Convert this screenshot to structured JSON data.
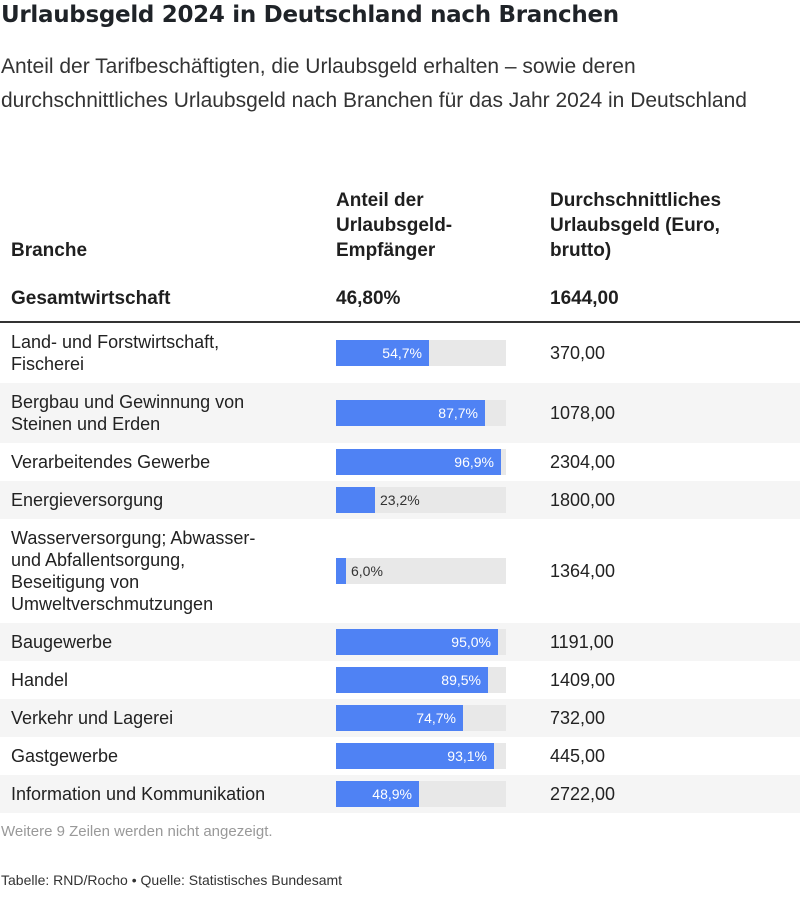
{
  "title": "Urlaubsgeld 2024 in Deutschland nach Branchen",
  "subtitle": "Anteil der Tarifbeschäftigten, die Urlaubsgeld erhalten – sowie deren durchschnittliches Urlaubsgeld nach Branchen für das Jahr 2024 in Deutschland",
  "columns": {
    "branche": "Branche",
    "anteil_1": "Anteil der",
    "anteil_2": "Urlaubsgeld-",
    "anteil_3": "Empfänger",
    "geld_1": "Durchschnittliches",
    "geld_2": "Urlaubsgeld (Euro,",
    "geld_3": "brutto)"
  },
  "total": {
    "name": "Gesamtwirtschaft",
    "anteil": "46,80%",
    "geld": "1644,00"
  },
  "bar_color": "#4f82f4",
  "track_color": "#e8e8e8",
  "chart_data": {
    "type": "table",
    "columns": [
      "Branche",
      "Anteil der Urlaubsgeld-Empfänger",
      "Durchschnittliches Urlaubsgeld (Euro, brutto)"
    ],
    "bar_max": 100,
    "rows": [
      {
        "lines": [
          "Land- und Forstwirtschaft,",
          "Fischerei"
        ],
        "anteil": 54.7,
        "anteil_label": "54,7%",
        "geld": "370,00"
      },
      {
        "lines": [
          "Bergbau und Gewinnung von",
          "Steinen und Erden"
        ],
        "anteil": 87.7,
        "anteil_label": "87,7%",
        "geld": "1078,00"
      },
      {
        "lines": [
          "Verarbeitendes Gewerbe"
        ],
        "anteil": 96.9,
        "anteil_label": "96,9%",
        "geld": "2304,00"
      },
      {
        "lines": [
          "Energieversorgung"
        ],
        "anteil": 23.2,
        "anteil_label": "23,2%",
        "geld": "1800,00"
      },
      {
        "lines": [
          "Wasserversorgung; Abwasser-",
          "und Abfallentsorgung,",
          "Beseitigung von",
          "Umweltverschmutzungen"
        ],
        "anteil": 6.0,
        "anteil_label": "6,0%",
        "geld": "1364,00"
      },
      {
        "lines": [
          "Baugewerbe"
        ],
        "anteil": 95.0,
        "anteil_label": "95,0%",
        "geld": "1191,00"
      },
      {
        "lines": [
          "Handel"
        ],
        "anteil": 89.5,
        "anteil_label": "89,5%",
        "geld": "1409,00"
      },
      {
        "lines": [
          "Verkehr und Lagerei"
        ],
        "anteil": 74.7,
        "anteil_label": "74,7%",
        "geld": "732,00"
      },
      {
        "lines": [
          "Gastgewerbe"
        ],
        "anteil": 93.1,
        "anteil_label": "93,1%",
        "geld": "445,00"
      },
      {
        "lines": [
          "Information und Kommunikation"
        ],
        "anteil": 48.9,
        "anteil_label": "48,9%",
        "geld": "2722,00"
      }
    ]
  },
  "note": "Weitere 9 Zeilen werden nicht angezeigt.",
  "source": "Tabelle: RND/Rocho • Quelle: Statistisches Bundesamt"
}
